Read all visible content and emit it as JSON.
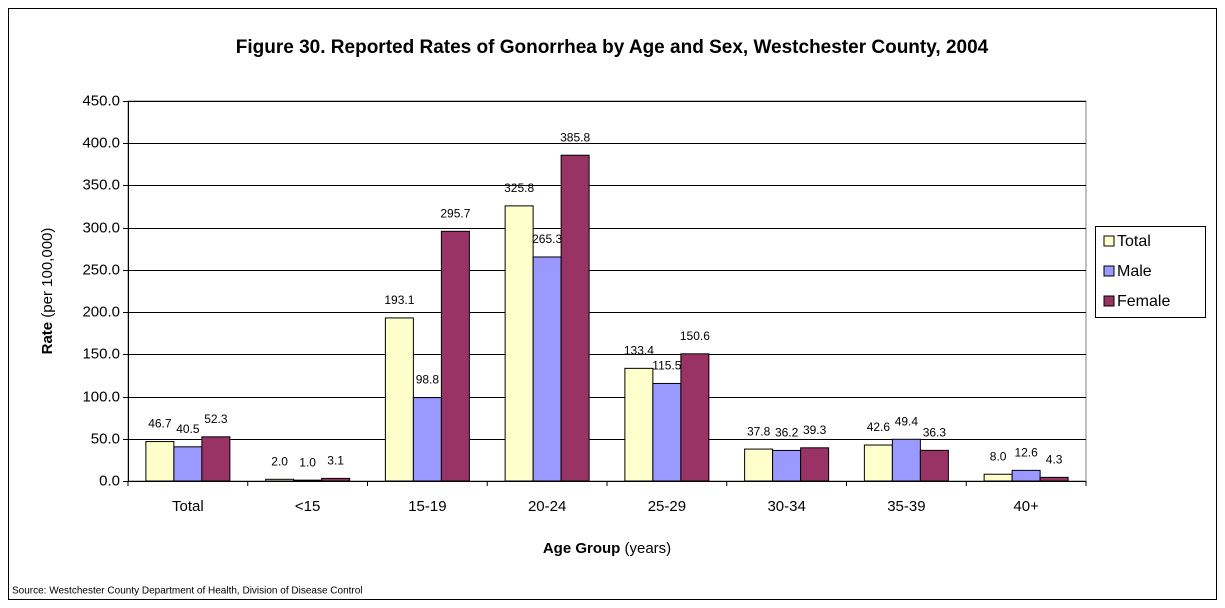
{
  "chart_data": {
    "type": "bar",
    "title": "Figure 30. Reported Rates of Gonorrhea by Age and Sex, Westchester County, 2004",
    "ylabel": {
      "bold": "Rate",
      "rest": "(per 100,000)"
    },
    "xlabel": {
      "bold": "Age Group",
      "rest": "(years)"
    },
    "source": "Source: Westchester County Department of Health, Division of Disease Control",
    "categories": [
      "Total",
      "<15",
      "15-19",
      "20-24",
      "25-29",
      "30-34",
      "35-39",
      "40+"
    ],
    "series": [
      {
        "name": "Total",
        "color": "#ffffcc",
        "values": [
          46.7,
          2,
          193.1,
          325.8,
          133.4,
          37.8,
          42.6,
          8
        ],
        "value_labels": [
          "46.7",
          "2.0",
          "193.1",
          "325.8",
          "133.4",
          "37.8",
          "42.6",
          "8.0"
        ]
      },
      {
        "name": "Male",
        "color": "#9999ff",
        "values": [
          40.5,
          1,
          98.8,
          265.3,
          115.5,
          36.2,
          49.4,
          12.6
        ],
        "value_labels": [
          "40.5",
          "1.0",
          "98.8",
          "265.3",
          "115.5",
          "36.2",
          "49.4",
          "12.6"
        ]
      },
      {
        "name": "Female",
        "color": "#993366",
        "values": [
          52.3,
          3.1,
          295.7,
          385.8,
          150.6,
          39.3,
          36.3,
          4.3
        ],
        "value_labels": [
          "52.3",
          "3.1",
          "295.7",
          "385.8",
          "150.6",
          "39.3",
          "36.3",
          "4.3"
        ]
      }
    ],
    "ylim": [
      0,
      450
    ],
    "yticks": [
      {
        "value": 0,
        "label": "0.0"
      },
      {
        "value": 50,
        "label": "50.0"
      },
      {
        "value": 100,
        "label": "100.0"
      },
      {
        "value": 150,
        "label": "150.0"
      },
      {
        "value": 200,
        "label": "200.0"
      },
      {
        "value": 250,
        "label": "250.0"
      },
      {
        "value": 300,
        "label": "300.0"
      },
      {
        "value": 350,
        "label": "350.0"
      },
      {
        "value": 400,
        "label": "400.0"
      },
      {
        "value": 450,
        "label": "450.0"
      }
    ],
    "grid": true,
    "legend": "right"
  }
}
